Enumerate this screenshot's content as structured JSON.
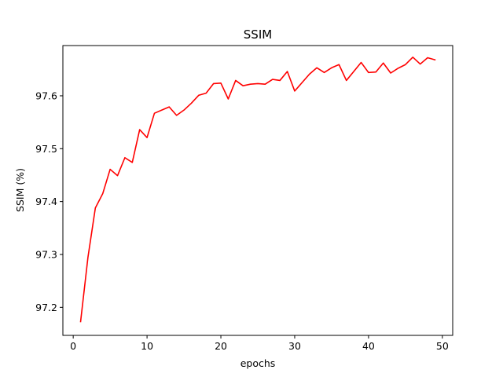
{
  "chart_data": {
    "type": "line",
    "title": "SSIM",
    "xlabel": "epochs",
    "ylabel": "SSIM (%)",
    "xlim": [
      -1.4,
      51.4
    ],
    "ylim": [
      97.147,
      97.695
    ],
    "xticks": [
      0,
      10,
      20,
      30,
      40,
      50
    ],
    "yticks": [
      97.2,
      97.3,
      97.4,
      97.5,
      97.6
    ],
    "ytick_labels": [
      "97.2",
      "97.3",
      "97.4",
      "97.5",
      "97.6"
    ],
    "grid": false,
    "series": [
      {
        "color": "#ff0000",
        "x": [
          1,
          2,
          3,
          4,
          5,
          6,
          7,
          8,
          9,
          10,
          11,
          12,
          13,
          14,
          15,
          16,
          17,
          18,
          19,
          20,
          21,
          22,
          23,
          24,
          25,
          26,
          27,
          28,
          29,
          30,
          31,
          32,
          33,
          34,
          35,
          36,
          37,
          38,
          39,
          40,
          41,
          42,
          43,
          44,
          45,
          46,
          47,
          48,
          49
        ],
        "y": [
          97.173,
          97.295,
          97.388,
          97.415,
          97.461,
          97.449,
          97.483,
          97.474,
          97.536,
          97.521,
          97.567,
          97.573,
          97.579,
          97.563,
          97.573,
          97.586,
          97.601,
          97.605,
          97.623,
          97.624,
          97.594,
          97.629,
          97.619,
          97.622,
          97.623,
          97.622,
          97.631,
          97.629,
          97.646,
          97.609,
          97.625,
          97.641,
          97.653,
          97.644,
          97.653,
          97.659,
          97.629,
          97.646,
          97.663,
          97.644,
          97.645,
          97.662,
          97.643,
          97.652,
          97.659,
          97.673,
          97.66,
          97.672,
          97.668
        ]
      }
    ]
  }
}
